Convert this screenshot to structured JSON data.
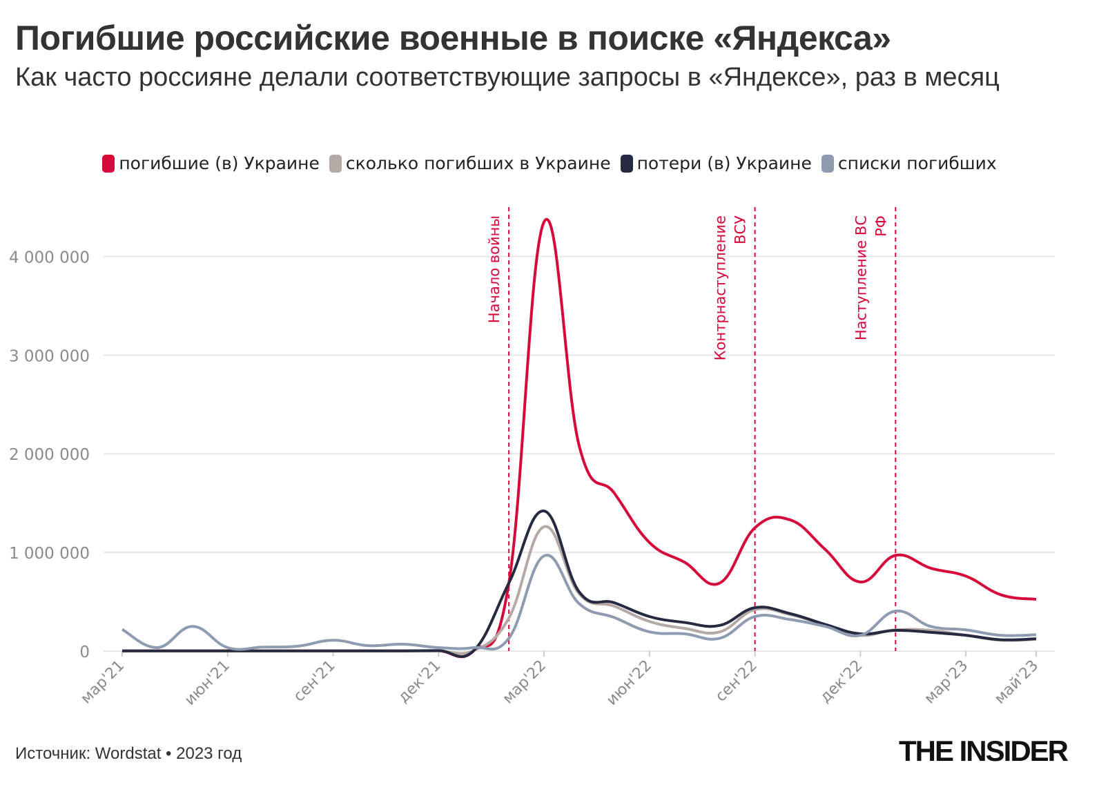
{
  "chart_data": {
    "type": "line",
    "title": "Погибшие российские военные в поиске «Яндекса»",
    "subtitle": "Как часто россияне делали соответствующие запросы в «Яндексе», раз в месяц",
    "source": "Источник: Wordstat • 2023 год",
    "brand": "THE INSIDER",
    "categories": [
      "мар'21",
      null,
      null,
      "июн'21",
      null,
      null,
      "сен'21",
      null,
      null,
      "дек'21",
      null,
      null,
      "мар'22",
      null,
      null,
      "июн'22",
      null,
      null,
      "сен'22",
      null,
      null,
      "дек'22",
      null,
      null,
      "мар'23",
      null,
      "май'23"
    ],
    "series": [
      {
        "name": "погибшие (в) Украине",
        "color": "#d6093b",
        "values": [
          3000,
          3000,
          3000,
          3000,
          3000,
          3000,
          3000,
          3000,
          3000,
          3000,
          3000,
          690000,
          4350000,
          2080000,
          1600000,
          1100000,
          900000,
          690000,
          1250000,
          1330000,
          1030000,
          700000,
          970000,
          840000,
          760000,
          570000,
          525000
        ]
      },
      {
        "name": "сколько погибших в Украине",
        "color": "#b5a9a5",
        "values": [
          2000,
          2000,
          2000,
          2000,
          2000,
          2000,
          2000,
          2000,
          2000,
          2000,
          5000,
          335000,
          1260000,
          580000,
          455000,
          300000,
          230000,
          195000,
          420000,
          370000,
          265000,
          160000,
          215000,
          210000,
          160000,
          110000,
          120000
        ]
      },
      {
        "name": "потери (в) Украине",
        "color": "#262a40",
        "values": [
          2000,
          2000,
          2000,
          2000,
          2000,
          2000,
          2000,
          2000,
          2000,
          5000,
          5000,
          690000,
          1420000,
          600000,
          490000,
          350000,
          290000,
          260000,
          440000,
          380000,
          270000,
          175000,
          210000,
          190000,
          160000,
          115000,
          125000
        ]
      },
      {
        "name": "списки погибших",
        "color": "#8e9bb0",
        "values": [
          220000,
          35000,
          250000,
          35000,
          40000,
          50000,
          110000,
          55000,
          70000,
          35000,
          35000,
          130000,
          965000,
          480000,
          340000,
          195000,
          175000,
          130000,
          350000,
          320000,
          250000,
          160000,
          405000,
          250000,
          215000,
          160000,
          165000
        ]
      }
    ],
    "annotations": [
      {
        "index": 11,
        "lines": [
          "Начало войны"
        ]
      },
      {
        "index": 18,
        "lines": [
          "Контрнаступление",
          "ВСУ"
        ]
      },
      {
        "index": 22,
        "lines": [
          "Наступление ВС",
          "РФ"
        ]
      }
    ],
    "annotation_color": "#d6093b",
    "ylim": [
      0,
      4500000
    ],
    "yticks": [
      0,
      {
        "value": 1000000,
        "label": "1 000 000"
      },
      {
        "value": 2000000,
        "label": "2 000 000"
      },
      {
        "value": 3000000,
        "label": "3 000 000"
      },
      {
        "value": 4000000,
        "label": "4 000 000"
      }
    ],
    "grid": true
  }
}
